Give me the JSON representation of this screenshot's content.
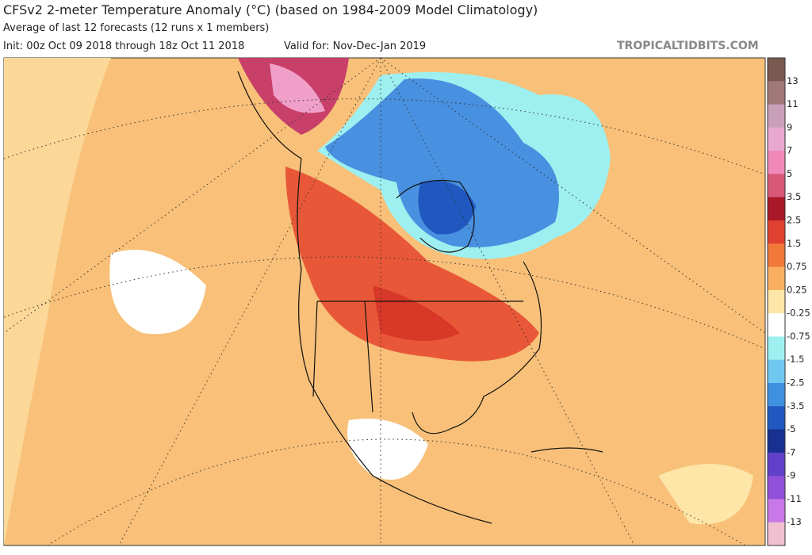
{
  "header": {
    "title": "CFSv2 2-meter Temperature Anomaly (°C) (based on 1984-2009 Model Climatology)",
    "subtitle": "Average of last 12 forecasts (12 runs x 1 members)",
    "init": "Init: 00z Oct 09 2018 through 18z Oct 11 2018",
    "valid": "Valid for: Nov-Dec-Jan 2019",
    "credit": "TROPICALTIDBITS.COM"
  },
  "colorbar": {
    "labels": [
      "13",
      "11",
      "9",
      "7",
      "5",
      "3.5",
      "2.5",
      "1.5",
      "0.75",
      "0.25",
      "-0.25",
      "-0.75",
      "-1.5",
      "-2.5",
      "-3.5",
      "-5",
      "-7",
      "-9",
      "-11",
      "-13"
    ],
    "colors": [
      "#7a5a50",
      "#a07878",
      "#c8a0b8",
      "#e8a8d0",
      "#f088b8",
      "#d85878",
      "#a81828",
      "#e04030",
      "#f07838",
      "#f8b060",
      "#fde6a8",
      "#ffffff",
      "#9ef0f0",
      "#70c8f0",
      "#4090e0",
      "#2058c0",
      "#183090",
      "#6040c8",
      "#9050d8",
      "#c878e8",
      "#f0c0d0"
    ]
  }
}
